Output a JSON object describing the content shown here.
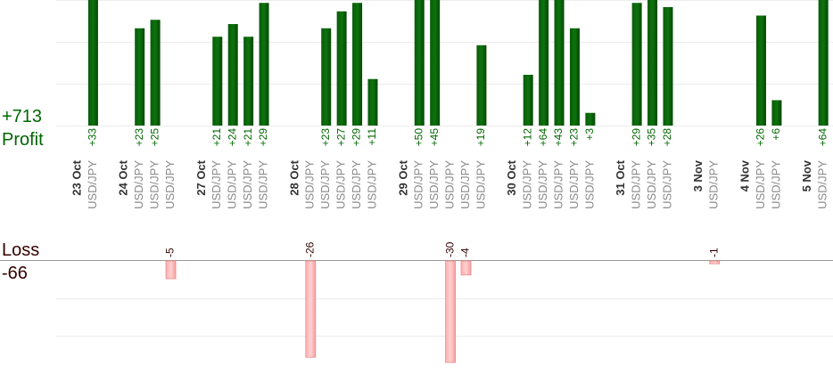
{
  "summary": {
    "profit_total": "+713",
    "profit_label": "Profit",
    "loss_label": "Loss",
    "loss_total": "-66"
  },
  "days": [
    {
      "date": "23 Oct",
      "trades": [
        {
          "symbol": "USD/JPY",
          "pl": 33,
          "pl_label": "+33"
        }
      ]
    },
    {
      "date": "24 Oct",
      "trades": [
        {
          "symbol": "USD/JPY",
          "pl": 23,
          "pl_label": "+23"
        },
        {
          "symbol": "USD/JPY",
          "pl": 25,
          "pl_label": "+25"
        },
        {
          "symbol": "USD/JPY",
          "pl": -5,
          "pl_label": "-5"
        }
      ]
    },
    {
      "date": "27 Oct",
      "trades": [
        {
          "symbol": "USD/JPY",
          "pl": 21,
          "pl_label": "+21"
        },
        {
          "symbol": "USD/JPY",
          "pl": 24,
          "pl_label": "+24"
        },
        {
          "symbol": "USD/JPY",
          "pl": 21,
          "pl_label": "+21"
        },
        {
          "symbol": "USD/JPY",
          "pl": 29,
          "pl_label": "+29"
        }
      ]
    },
    {
      "date": "28 Oct",
      "trades": [
        {
          "symbol": "USD/JPY",
          "pl": -26,
          "pl_label": "-26"
        },
        {
          "symbol": "USD/JPY",
          "pl": 23,
          "pl_label": "+23"
        },
        {
          "symbol": "USD/JPY",
          "pl": 27,
          "pl_label": "+27"
        },
        {
          "symbol": "USD/JPY",
          "pl": 29,
          "pl_label": "+29"
        },
        {
          "symbol": "USD/JPY",
          "pl": 11,
          "pl_label": "+11"
        }
      ]
    },
    {
      "date": "29 Oct",
      "trades": [
        {
          "symbol": "USD/JPY",
          "pl": 50,
          "pl_label": "+50"
        },
        {
          "symbol": "USD/JPY",
          "pl": 45,
          "pl_label": "+45"
        },
        {
          "symbol": "USD/JPY",
          "pl": -30,
          "pl_label": "-30"
        },
        {
          "symbol": "USD/JPY",
          "pl": -4,
          "pl_label": "-4"
        },
        {
          "symbol": "USD/JPY",
          "pl": 19,
          "pl_label": "+19"
        }
      ]
    },
    {
      "date": "30 Oct",
      "trades": [
        {
          "symbol": "USD/JPY",
          "pl": 12,
          "pl_label": "+12"
        },
        {
          "symbol": "USD/JPY",
          "pl": 64,
          "pl_label": "+64"
        },
        {
          "symbol": "USD/JPY",
          "pl": 43,
          "pl_label": "+43"
        },
        {
          "symbol": "USD/JPY",
          "pl": 23,
          "pl_label": "+23"
        },
        {
          "symbol": "USD/JPY",
          "pl": 3,
          "pl_label": "+3"
        }
      ]
    },
    {
      "date": "31 Oct",
      "trades": [
        {
          "symbol": "USD/JPY",
          "pl": 29,
          "pl_label": "+29"
        },
        {
          "symbol": "USD/JPY",
          "pl": 35,
          "pl_label": "+35"
        },
        {
          "symbol": "USD/JPY",
          "pl": 28,
          "pl_label": "+28"
        }
      ]
    },
    {
      "date": "3 Nov",
      "trades": [
        {
          "symbol": "USD/JPY",
          "pl": -1,
          "pl_label": "-1"
        }
      ]
    },
    {
      "date": "4 Nov",
      "trades": [
        {
          "symbol": "USD/JPY",
          "pl": 26,
          "pl_label": "+26"
        },
        {
          "symbol": "USD/JPY",
          "pl": 6,
          "pl_label": "+6"
        }
      ]
    },
    {
      "date": "5 Nov",
      "trades": [
        {
          "symbol": "USD/JPY",
          "pl": 64,
          "pl_label": "+64"
        }
      ]
    }
  ]
}
